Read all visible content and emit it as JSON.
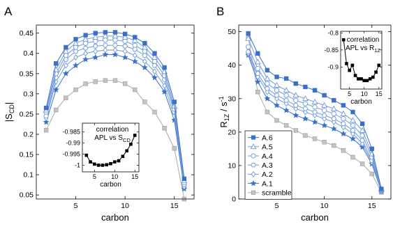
{
  "chart_data": [
    {
      "panel_label": "A",
      "type": "line",
      "xlabel": "carbon",
      "ylabel": "|S",
      "ylabel_sub": "CD",
      "ylabel_end": "|",
      "xlim": [
        1,
        17
      ],
      "ylim": [
        0.04,
        0.47
      ],
      "xticks": [
        5,
        10,
        15
      ],
      "yticks": [
        0.05,
        0.1,
        0.15,
        0.2,
        0.25,
        0.3,
        0.35,
        0.4,
        0.45
      ],
      "ytick_labels": [
        "0.05",
        "0.1",
        "0.15",
        "0.2",
        "0.25",
        "0.3",
        "0.35",
        "0.4",
        "0.45"
      ],
      "x": [
        2,
        3,
        4,
        5,
        6,
        7,
        8,
        9,
        10,
        11,
        12,
        13,
        14,
        15,
        16
      ],
      "series": [
        {
          "color": "#3a70c7",
          "marker": "square-filled",
          "values": [
            0.265,
            0.375,
            0.415,
            0.435,
            0.445,
            0.45,
            0.452,
            0.452,
            0.448,
            0.44,
            0.425,
            0.4,
            0.365,
            0.28,
            0.09
          ]
        },
        {
          "color": "#6e98da",
          "marker": "triangle-open",
          "values": [
            0.26,
            0.36,
            0.405,
            0.425,
            0.435,
            0.44,
            0.443,
            0.443,
            0.44,
            0.432,
            0.415,
            0.39,
            0.355,
            0.27,
            0.085
          ]
        },
        {
          "color": "#6e98da",
          "marker": "circle-open",
          "values": [
            0.255,
            0.35,
            0.395,
            0.415,
            0.425,
            0.43,
            0.433,
            0.433,
            0.43,
            0.42,
            0.405,
            0.38,
            0.345,
            0.262,
            0.08
          ]
        },
        {
          "color": "#6e98da",
          "marker": "hexagon-open",
          "values": [
            0.245,
            0.34,
            0.385,
            0.405,
            0.413,
            0.418,
            0.42,
            0.42,
            0.418,
            0.41,
            0.395,
            0.37,
            0.335,
            0.255,
            0.075
          ]
        },
        {
          "color": "#6e98da",
          "marker": "diamond-open",
          "values": [
            0.24,
            0.33,
            0.37,
            0.39,
            0.4,
            0.405,
            0.408,
            0.408,
            0.405,
            0.395,
            0.38,
            0.355,
            0.32,
            0.245,
            0.07
          ]
        },
        {
          "color": "#3a70c7",
          "marker": "star",
          "values": [
            0.23,
            0.31,
            0.35,
            0.37,
            0.385,
            0.39,
            0.397,
            0.397,
            0.39,
            0.38,
            0.365,
            0.34,
            0.305,
            0.235,
            0.065
          ]
        },
        {
          "color": "#a9a9a9",
          "marker": "square-gray",
          "values": [
            0.21,
            0.26,
            0.29,
            0.31,
            0.325,
            0.33,
            0.333,
            0.333,
            0.325,
            0.31,
            0.28,
            0.255,
            0.215,
            0.165,
            0.04
          ]
        }
      ],
      "inset": {
        "title_line1": "correlation",
        "title_line2": "APL vs S",
        "title_sub": "CD",
        "xlabel": "carbon",
        "xlim": [
          2,
          16
        ],
        "ylim": [
          -1.003,
          -0.981
        ],
        "xticks": [
          5,
          10,
          15
        ],
        "yticks": [
          -1,
          -0.995,
          -0.99,
          -0.985
        ],
        "ytick_labels": [
          "-1",
          "-0.995",
          "-0.99",
          "-0.985"
        ],
        "x": [
          3,
          4,
          5,
          6,
          7,
          8,
          9,
          10,
          11,
          12,
          13,
          14,
          15
        ],
        "values": [
          -0.9955,
          -0.9985,
          -0.9995,
          -1.0,
          -1.0,
          -0.9998,
          -0.9993,
          -0.9985,
          -0.998,
          -0.996,
          -0.9935,
          -0.9905,
          -0.9865
        ],
        "color": "#000000"
      }
    },
    {
      "panel_label": "B",
      "type": "line",
      "xlabel": "carbon",
      "ylabel": "R",
      "ylabel_sub": "1Z",
      "ylabel_end": " / s",
      "ylabel_sup": "-1",
      "xlim": [
        1,
        17
      ],
      "ylim": [
        0,
        52
      ],
      "xticks": [
        5,
        10,
        15
      ],
      "yticks": [
        0,
        10,
        20,
        30,
        40,
        50
      ],
      "ytick_labels": [
        "0",
        "10",
        "20",
        "30",
        "40",
        "50"
      ],
      "x": [
        2,
        3,
        4,
        5,
        6,
        7,
        8,
        9,
        10,
        11,
        12,
        13,
        14,
        15,
        16
      ],
      "series": [
        {
          "name": "A.6",
          "color": "#3a70c7",
          "marker": "square-filled",
          "values": [
            49.5,
            43.5,
            38.5,
            36.5,
            36.0,
            34.5,
            33.5,
            32.5,
            31.0,
            29.5,
            28.0,
            26.0,
            22.5,
            15.0,
            3.0
          ]
        },
        {
          "name": "A.5",
          "color": "#6e98da",
          "marker": "triangle-open",
          "values": [
            48.0,
            41.0,
            36.0,
            34.0,
            32.5,
            31.0,
            30.0,
            29.0,
            28.0,
            27.0,
            25.5,
            23.5,
            20.5,
            13.5,
            2.8
          ]
        },
        {
          "name": "A.4",
          "color": "#6e98da",
          "marker": "circle-open",
          "values": [
            45.5,
            39.0,
            34.5,
            32.5,
            31.0,
            29.5,
            28.5,
            27.5,
            26.5,
            25.5,
            24.0,
            22.0,
            19.0,
            12.5,
            2.6
          ]
        },
        {
          "name": "A.3",
          "color": "#6e98da",
          "marker": "hexagon-open",
          "values": [
            44.0,
            37.5,
            33.0,
            31.0,
            29.5,
            28.0,
            27.0,
            26.0,
            25.0,
            24.0,
            22.5,
            20.5,
            17.5,
            11.5,
            2.5
          ]
        },
        {
          "name": "A.2",
          "color": "#6e98da",
          "marker": "diamond-open",
          "values": [
            43.5,
            36.5,
            32.0,
            30.0,
            28.5,
            27.0,
            26.0,
            25.0,
            24.0,
            23.0,
            21.5,
            19.5,
            16.5,
            11.0,
            2.4
          ]
        },
        {
          "name": "A.1",
          "color": "#3a70c7",
          "marker": "star",
          "values": [
            43.0,
            35.0,
            30.0,
            28.0,
            26.5,
            25.0,
            24.0,
            23.0,
            22.0,
            21.0,
            19.5,
            18.0,
            15.5,
            10.5,
            2.3
          ]
        },
        {
          "name": "scramble",
          "color": "#a9a9a9",
          "marker": "square-gray",
          "values": [
            48.5,
            32.0,
            26.0,
            23.5,
            22.0,
            20.5,
            19.0,
            18.0,
            17.0,
            16.0,
            14.5,
            12.5,
            10.5,
            7.5,
            2.0
          ]
        }
      ],
      "legend_position": "bottom-left",
      "inset": {
        "title_line1": "correlation",
        "title_line2": "APL vs R",
        "title_sub": "1Z",
        "xlabel": "carbon",
        "xlim": [
          2,
          16
        ],
        "ylim": [
          -0.965,
          -0.795
        ],
        "xticks": [
          5,
          10,
          15
        ],
        "yticks": [
          -0.9,
          -0.85,
          -0.8
        ],
        "ytick_labels": [
          "-0.9",
          "-0.85",
          "-0.8"
        ],
        "x": [
          3,
          4,
          5,
          6,
          7,
          8,
          9,
          10,
          11,
          12,
          13,
          14,
          15
        ],
        "values": [
          -0.82,
          -0.89,
          -0.91,
          -0.895,
          -0.925,
          -0.935,
          -0.935,
          -0.94,
          -0.94,
          -0.935,
          -0.93,
          -0.915,
          -0.895
        ],
        "color": "#000000"
      }
    }
  ]
}
